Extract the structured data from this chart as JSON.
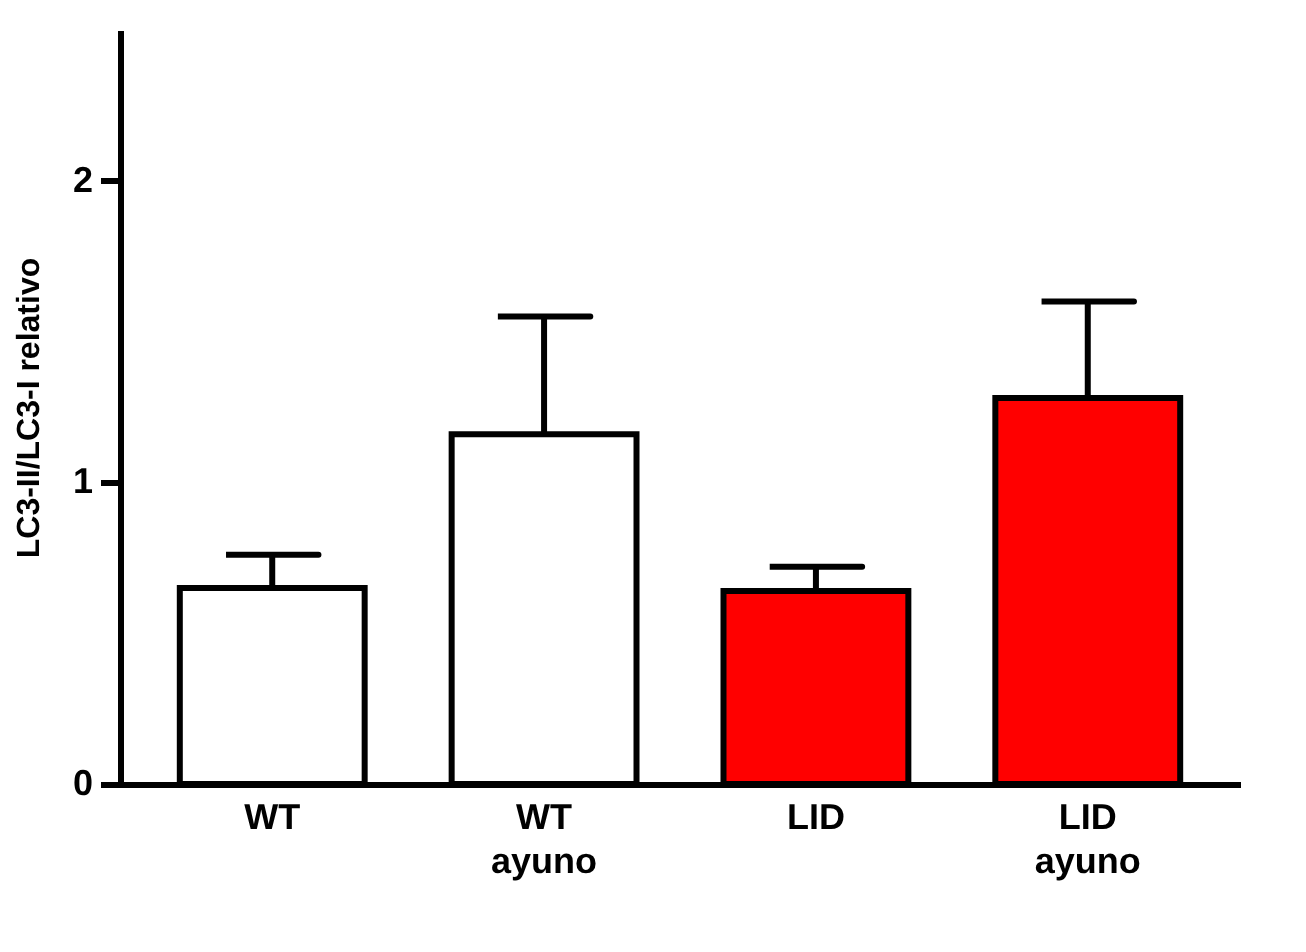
{
  "chart_data": {
    "type": "bar",
    "ylabel": "LC3-II/LC3-I relativo",
    "categories": [
      "WT",
      "WT ayuno",
      "LID",
      "LID ayuno"
    ],
    "values": [
      0.65,
      1.16,
      0.64,
      1.28
    ],
    "colors": [
      "#ffffff",
      "#ffffff",
      "#ff0000",
      "#ff0000"
    ],
    "errors": [
      [
        0.65,
        0.76
      ],
      [
        1.16,
        1.55
      ],
      [
        0.64,
        0.72
      ],
      [
        1.28,
        1.6
      ]
    ],
    "ylim": [
      0,
      2.5
    ],
    "yticks": [
      0,
      1,
      2
    ],
    "grid": false,
    "legend": false
  }
}
